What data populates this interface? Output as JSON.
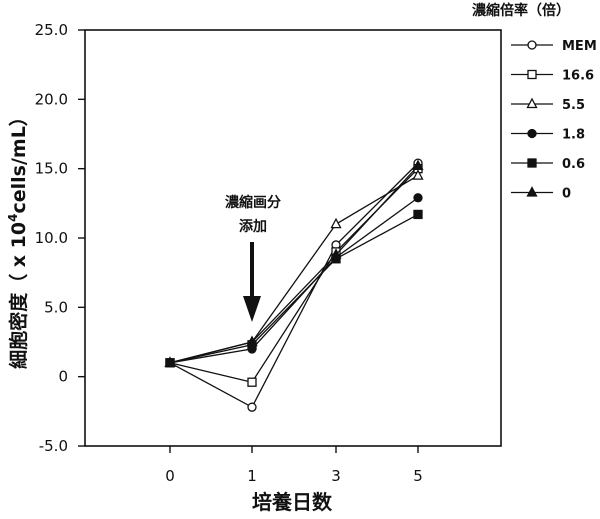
{
  "chart_data": {
    "type": "line",
    "title": "",
    "xlabel": "培養日数",
    "ylabel": "細胞密度（ x 10",
    "ylabel_sup": "4",
    "ylabel_tail": "cells/mL）",
    "categories": [
      "0",
      "1",
      "3",
      "5"
    ],
    "ylim": [
      -5.0,
      25.0
    ],
    "yticks": [
      "-5.0",
      "0",
      "5.0",
      "10.0",
      "15.0",
      "20.0",
      "25.0"
    ],
    "legend_title": "濃縮倍率（倍）",
    "legend_placement": "right",
    "annotation": {
      "lines": [
        "濃縮画分",
        "添加"
      ],
      "x": "1"
    },
    "series": [
      {
        "name": "MEM",
        "marker": "circle-open",
        "values": [
          1.0,
          -2.2,
          9.5,
          15.4
        ]
      },
      {
        "name": "16.6",
        "marker": "square-open",
        "values": [
          1.0,
          -0.4,
          9.0,
          15.0
        ]
      },
      {
        "name": "5.5",
        "marker": "triangle-open",
        "values": [
          1.0,
          2.5,
          11.0,
          14.5
        ]
      },
      {
        "name": "1.8",
        "marker": "circle-filled",
        "values": [
          1.0,
          2.0,
          8.6,
          12.9
        ]
      },
      {
        "name": "0.6",
        "marker": "square-filled",
        "values": [
          1.0,
          2.3,
          8.5,
          11.7
        ]
      },
      {
        "name": "0",
        "marker": "triangle-filled",
        "values": [
          1.0,
          2.5,
          8.8,
          15.2
        ]
      }
    ]
  }
}
